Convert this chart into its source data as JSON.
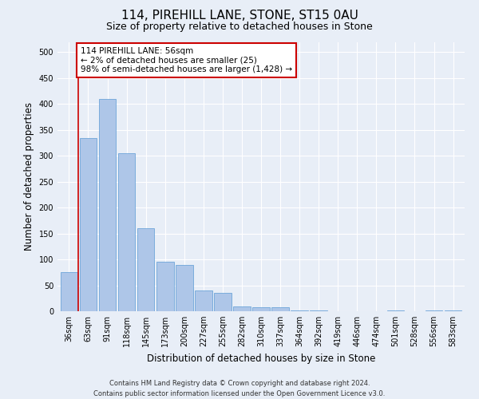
{
  "title": "114, PIREHILL LANE, STONE, ST15 0AU",
  "subtitle": "Size of property relative to detached houses in Stone",
  "xlabel": "Distribution of detached houses by size in Stone",
  "ylabel": "Number of detached properties",
  "footer_line1": "Contains HM Land Registry data © Crown copyright and database right 2024.",
  "footer_line2": "Contains public sector information licensed under the Open Government Licence v3.0.",
  "annotation_line1": "114 PIREHILL LANE: 56sqm",
  "annotation_line2": "← 2% of detached houses are smaller (25)",
  "annotation_line3": "98% of semi-detached houses are larger (1,428) →",
  "bar_labels": [
    "36sqm",
    "63sqm",
    "91sqm",
    "118sqm",
    "145sqm",
    "173sqm",
    "200sqm",
    "227sqm",
    "255sqm",
    "282sqm",
    "310sqm",
    "337sqm",
    "364sqm",
    "392sqm",
    "419sqm",
    "446sqm",
    "474sqm",
    "501sqm",
    "528sqm",
    "556sqm",
    "583sqm"
  ],
  "bar_values": [
    75,
    335,
    410,
    305,
    160,
    95,
    90,
    40,
    35,
    10,
    8,
    8,
    2,
    2,
    0,
    0,
    0,
    2,
    0,
    2,
    2
  ],
  "bar_color": "#aec6e8",
  "bar_edge_color": "#5b9bd5",
  "vline_x_index": 0.5,
  "vline_color": "#cc0000",
  "annotation_box_color": "#cc0000",
  "background_color": "#e8eef7",
  "plot_bg_color": "#e8eef7",
  "ylim": [
    0,
    520
  ],
  "yticks": [
    0,
    50,
    100,
    150,
    200,
    250,
    300,
    350,
    400,
    450,
    500
  ],
  "grid_color": "#ffffff",
  "title_fontsize": 11,
  "subtitle_fontsize": 9,
  "xlabel_fontsize": 8.5,
  "ylabel_fontsize": 8.5,
  "tick_fontsize": 7,
  "annotation_fontsize": 7.5,
  "footer_fontsize": 6
}
